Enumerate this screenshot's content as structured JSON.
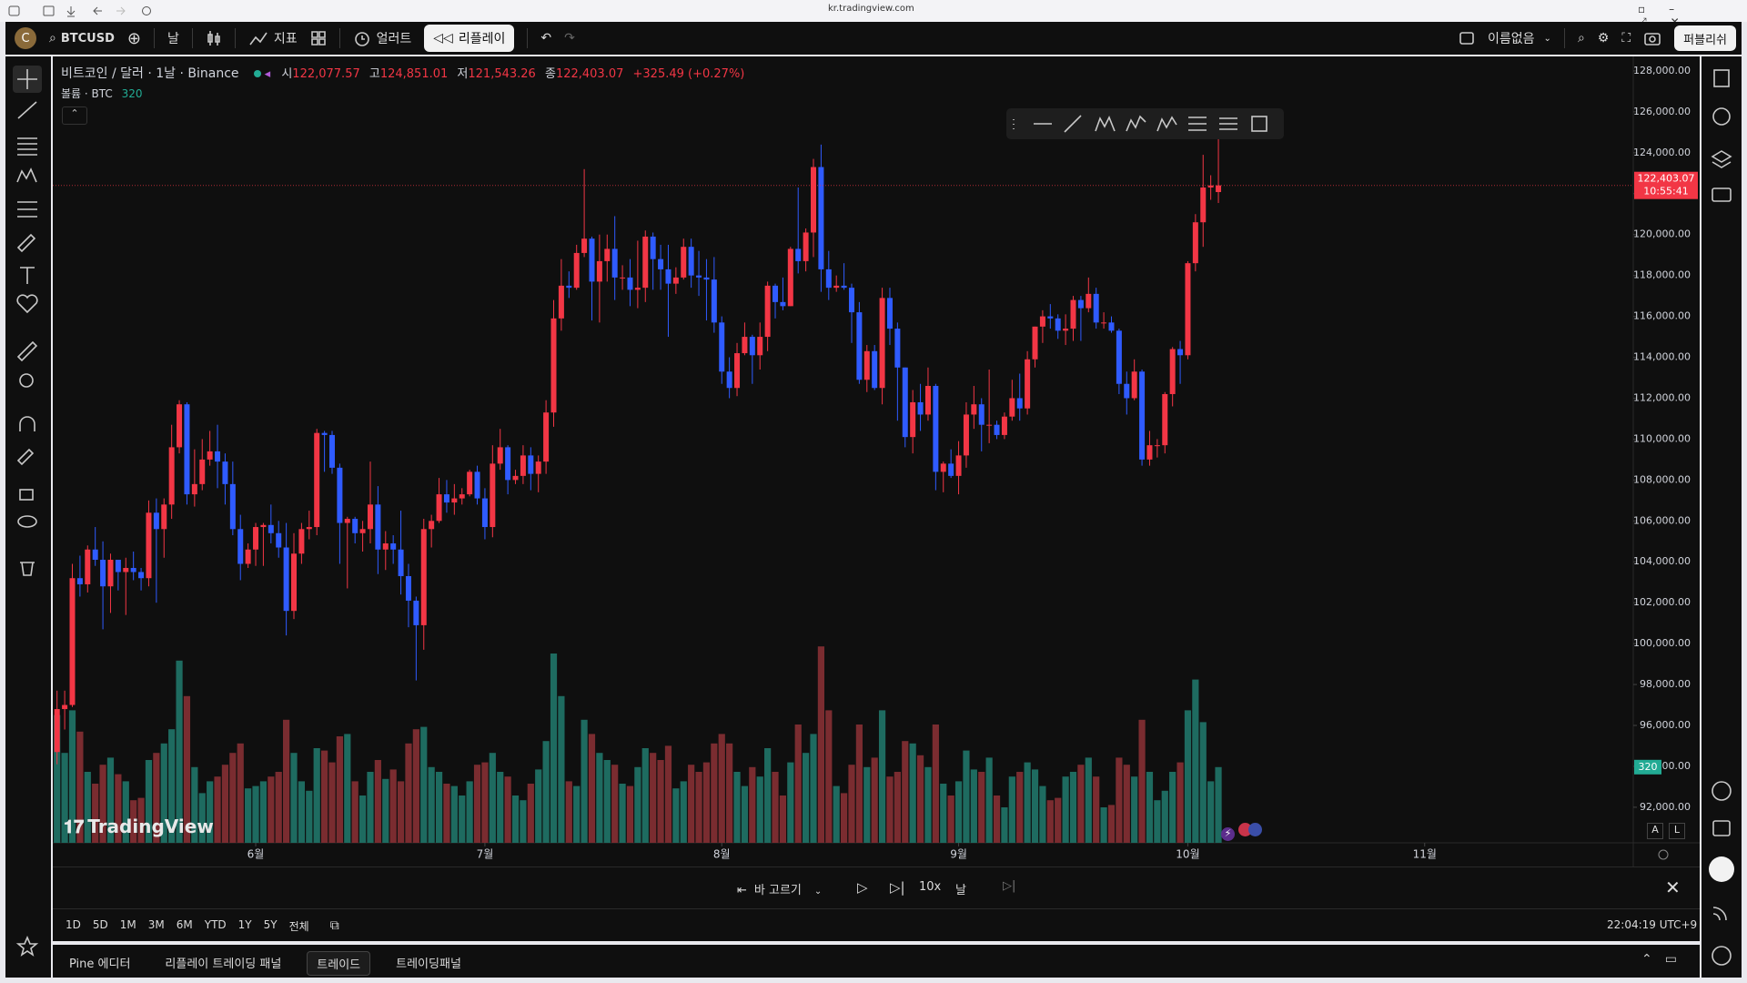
{
  "browser": {
    "url": "kr.tradingview.com"
  },
  "toolbar": {
    "avatar": "C",
    "symbol": "BTCUSD",
    "interval": "날",
    "indicators": "지표",
    "alerts": "얼러트",
    "replay": "리플레이",
    "layout_name": "이름없음",
    "publish": "퍼블리쉬"
  },
  "chart_data": {
    "type": "candlestick",
    "title": "비트코인 / 달러 · 1날 · Binance",
    "legend": {
      "items": [
        {
          "key": "시",
          "label": "122,077.57"
        },
        {
          "key": "고",
          "label": "124,851.01"
        },
        {
          "key": "저",
          "label": "121,543.26"
        },
        {
          "key": "종",
          "label": "122,403.07"
        }
      ],
      "change": "+325.49 (+0.27%)"
    },
    "countdown": "10:55:41",
    "up_color": "#f23645",
    "down_color": "#2f5bff",
    "grid": false,
    "ylim": [
      90260,
      128620
    ],
    "yticks": [
      {
        "value": 128000,
        "label": "128,000.00"
      },
      {
        "value": 126000,
        "label": "126,000.00"
      },
      {
        "value": 124000,
        "label": "124,000.00"
      },
      {
        "value": 122000,
        "label": "122,000.00"
      },
      {
        "value": 120000,
        "label": "120,000.00"
      },
      {
        "value": 118000,
        "label": "118,000.00"
      },
      {
        "value": 116000,
        "label": "116,000.00"
      },
      {
        "value": 114000,
        "label": "114,000.00"
      },
      {
        "value": 112000,
        "label": "112,000.00"
      },
      {
        "value": 110000,
        "label": "110,000.00"
      },
      {
        "value": 108000,
        "label": "108,000.00"
      },
      {
        "value": 106000,
        "label": "106,000.00"
      },
      {
        "value": 104000,
        "label": "104,000.00"
      },
      {
        "value": 102000,
        "label": "102,000.00"
      },
      {
        "value": 100000,
        "label": "100,000.00"
      },
      {
        "value": 98000,
        "label": "98,000.00"
      },
      {
        "value": 96000,
        "label": "96,000.00"
      },
      {
        "value": 94000,
        "label": "94,000.00"
      },
      {
        "value": 92000,
        "label": "92,000.00"
      }
    ],
    "xlim": [
      -0.56,
      206.3
    ],
    "xticks": [
      {
        "value": 26,
        "label": "6월"
      },
      {
        "value": 56,
        "label": "7월"
      },
      {
        "value": 87,
        "label": "8월"
      },
      {
        "value": 118,
        "label": "9월"
      },
      {
        "value": 148,
        "label": "10월"
      },
      {
        "value": 179,
        "label": "11월"
      }
    ],
    "candles": [
      [
        94700,
        97700,
        94100,
        96800
      ],
      [
        96800,
        97700,
        95800,
        97000
      ],
      [
        97000,
        103900,
        96900,
        103200
      ],
      [
        103200,
        104300,
        102300,
        102900
      ],
      [
        102900,
        104800,
        102500,
        104600
      ],
      [
        104600,
        105700,
        103800,
        104100
      ],
      [
        104100,
        105000,
        100700,
        102800
      ],
      [
        102800,
        104400,
        101500,
        104100
      ],
      [
        104100,
        104100,
        102600,
        103500
      ],
      [
        103500,
        104200,
        101400,
        103700
      ],
      [
        103700,
        104500,
        103100,
        103500
      ],
      [
        103500,
        103700,
        102600,
        103200
      ],
      [
        103200,
        107000,
        102800,
        106400
      ],
      [
        106400,
        107100,
        102000,
        105600
      ],
      [
        105600,
        107100,
        104200,
        106800
      ],
      [
        106800,
        110700,
        106100,
        109600
      ],
      [
        109600,
        111900,
        109300,
        111700
      ],
      [
        111700,
        111800,
        106800,
        107300
      ],
      [
        107300,
        109500,
        106700,
        107800
      ],
      [
        107800,
        110000,
        107500,
        109000
      ],
      [
        109000,
        110400,
        108700,
        109400
      ],
      [
        109400,
        110700,
        107600,
        108900
      ],
      [
        108900,
        109300,
        106800,
        107800
      ],
      [
        107800,
        108900,
        105300,
        105600
      ],
      [
        105600,
        106300,
        103100,
        103900
      ],
      [
        103900,
        104900,
        103700,
        104600
      ],
      [
        104600,
        105900,
        103800,
        105700
      ],
      [
        105700,
        105900,
        103800,
        105800
      ],
      [
        105800,
        106800,
        104900,
        105400
      ],
      [
        105400,
        106000,
        104200,
        104700
      ],
      [
        104700,
        105900,
        100400,
        101600
      ],
      [
        101600,
        105400,
        101200,
        104400
      ],
      [
        104400,
        105900,
        103900,
        105600
      ],
      [
        105600,
        106500,
        105100,
        105700
      ],
      [
        105700,
        110500,
        105300,
        110300
      ],
      [
        110300,
        110400,
        108400,
        110200
      ],
      [
        110200,
        110400,
        108300,
        108600
      ],
      [
        108600,
        108800,
        103900,
        105900
      ],
      [
        105900,
        106200,
        102700,
        106100
      ],
      [
        106100,
        106200,
        104900,
        105400
      ],
      [
        105400,
        106000,
        104500,
        105600
      ],
      [
        105600,
        108900,
        104900,
        106800
      ],
      [
        106800,
        107700,
        103400,
        104600
      ],
      [
        104600,
        105500,
        103600,
        104900
      ],
      [
        104900,
        105300,
        103900,
        104600
      ],
      [
        104600,
        106500,
        102400,
        103300
      ],
      [
        103300,
        103900,
        100800,
        102100
      ],
      [
        102100,
        102300,
        98200,
        100900
      ],
      [
        100900,
        106100,
        99700,
        105600
      ],
      [
        105600,
        106300,
        104700,
        106000
      ],
      [
        106000,
        108100,
        105900,
        107300
      ],
      [
        107300,
        108000,
        106400,
        106900
      ],
      [
        106900,
        107800,
        106300,
        107100
      ],
      [
        107100,
        107600,
        106800,
        107300
      ],
      [
        107300,
        108500,
        107200,
        108400
      ],
      [
        108400,
        108700,
        106800,
        107100
      ],
      [
        107100,
        107600,
        105100,
        105700
      ],
      [
        105700,
        109700,
        105200,
        108800
      ],
      [
        108800,
        110500,
        108500,
        109600
      ],
      [
        109600,
        109700,
        107300,
        108000
      ],
      [
        108000,
        108500,
        107800,
        108200
      ],
      [
        108200,
        109700,
        107800,
        109200
      ],
      [
        109200,
        109600,
        107500,
        108300
      ],
      [
        108300,
        109200,
        107400,
        108900
      ],
      [
        108900,
        111900,
        108300,
        111300
      ],
      [
        111300,
        116800,
        110600,
        115900
      ],
      [
        115900,
        118800,
        115300,
        117500
      ],
      [
        117500,
        118200,
        116900,
        117400
      ],
      [
        117400,
        119500,
        117300,
        119100
      ],
      [
        119100,
        123200,
        118900,
        119800
      ],
      [
        119800,
        119900,
        115800,
        117700
      ],
      [
        117700,
        120000,
        115700,
        118700
      ],
      [
        118700,
        120000,
        117700,
        119300
      ],
      [
        119300,
        120900,
        116800,
        117900
      ],
      [
        117900,
        118500,
        117300,
        117900
      ],
      [
        117900,
        118800,
        116500,
        117300
      ],
      [
        117300,
        119700,
        116400,
        117400
      ],
      [
        117400,
        120200,
        116700,
        119900
      ],
      [
        119900,
        120100,
        117300,
        118800
      ],
      [
        118800,
        119500,
        117300,
        118300
      ],
      [
        118300,
        119500,
        115000,
        117600
      ],
      [
        117600,
        118400,
        117100,
        117900
      ],
      [
        117900,
        119800,
        117800,
        119400
      ],
      [
        119400,
        119800,
        117400,
        118000
      ],
      [
        118000,
        119200,
        117000,
        117900
      ],
      [
        117900,
        118800,
        115800,
        117800
      ],
      [
        117800,
        118900,
        115200,
        115700
      ],
      [
        115700,
        116000,
        112700,
        113300
      ],
      [
        113300,
        114000,
        112000,
        112500
      ],
      [
        112500,
        114700,
        112100,
        114200
      ],
      [
        114200,
        115700,
        114100,
        115000
      ],
      [
        115000,
        115100,
        112700,
        114100
      ],
      [
        114100,
        115700,
        113400,
        115000
      ],
      [
        115000,
        117700,
        114300,
        117500
      ],
      [
        117500,
        117600,
        115900,
        116700
      ],
      [
        116700,
        117900,
        116300,
        116500
      ],
      [
        116500,
        119400,
        116500,
        119300
      ],
      [
        119300,
        122300,
        118100,
        118700
      ],
      [
        118700,
        120300,
        118200,
        120100
      ],
      [
        120100,
        123700,
        118900,
        123300
      ],
      [
        123300,
        124400,
        117200,
        118300
      ],
      [
        118300,
        119200,
        116800,
        117400
      ],
      [
        117400,
        118000,
        117200,
        117500
      ],
      [
        117500,
        118600,
        117300,
        117400
      ],
      [
        117400,
        117600,
        114700,
        116200
      ],
      [
        116200,
        116700,
        112700,
        112900
      ],
      [
        112900,
        114600,
        112300,
        114300
      ],
      [
        114300,
        114600,
        112400,
        112500
      ],
      [
        112500,
        117400,
        111700,
        116900
      ],
      [
        116900,
        117400,
        114600,
        115400
      ],
      [
        115400,
        115700,
        110900,
        113500
      ],
      [
        113500,
        113500,
        109600,
        110100
      ],
      [
        110100,
        112400,
        109300,
        111800
      ],
      [
        111800,
        112700,
        110400,
        111200
      ],
      [
        111200,
        113500,
        110900,
        112600
      ],
      [
        112600,
        112700,
        107500,
        108400
      ],
      [
        108400,
        108900,
        107400,
        108800
      ],
      [
        108800,
        109500,
        108100,
        108200
      ],
      [
        108200,
        109900,
        107300,
        109200
      ],
      [
        109200,
        111800,
        108600,
        111200
      ],
      [
        111200,
        112600,
        110500,
        111700
      ],
      [
        111700,
        112000,
        109400,
        110700
      ],
      [
        110700,
        113400,
        109800,
        110700
      ],
      [
        110700,
        110900,
        110000,
        110200
      ],
      [
        110200,
        111300,
        110000,
        111100
      ],
      [
        111100,
        112900,
        110900,
        112000
      ],
      [
        112000,
        113200,
        110900,
        111500
      ],
      [
        111500,
        114300,
        111200,
        113900
      ],
      [
        113900,
        115500,
        113500,
        115500
      ],
      [
        115500,
        116300,
        114700,
        116000
      ],
      [
        116000,
        116600,
        115400,
        115900
      ],
      [
        115900,
        116100,
        114900,
        115300
      ],
      [
        115300,
        116100,
        114600,
        115400
      ],
      [
        115400,
        117000,
        114800,
        116800
      ],
      [
        116800,
        117000,
        114800,
        116400
      ],
      [
        116400,
        117900,
        116200,
        117100
      ],
      [
        117100,
        117400,
        115400,
        115700
      ],
      [
        115700,
        116200,
        115400,
        115700
      ],
      [
        115700,
        116000,
        115200,
        115300
      ],
      [
        115300,
        115400,
        112200,
        112700
      ],
      [
        112700,
        113300,
        111200,
        112000
      ],
      [
        112000,
        113900,
        111900,
        113300
      ],
      [
        113300,
        113400,
        108700,
        109000
      ],
      [
        109000,
        110400,
        108700,
        109700
      ],
      [
        109700,
        110000,
        109100,
        109700
      ],
      [
        109700,
        112300,
        109300,
        112200
      ],
      [
        112200,
        114500,
        111600,
        114400
      ],
      [
        114400,
        114800,
        112700,
        114100
      ],
      [
        114100,
        118700,
        113900,
        118600
      ],
      [
        118600,
        121000,
        118200,
        120600
      ],
      [
        120600,
        123900,
        119400,
        122300
      ],
      [
        122300,
        122900,
        121700,
        122400
      ],
      [
        122077.57,
        124851.01,
        121543.26,
        122403.07
      ]
    ],
    "volume": {
      "name": "볼륨 · BTC",
      "up_color": "#1e6b60",
      "down_color": "#7a2c30",
      "ylim": [
        0,
        1250
      ],
      "values": [
        540,
        380,
        560,
        470,
        300,
        250,
        330,
        360,
        290,
        260,
        180,
        190,
        350,
        380,
        420,
        480,
        770,
        620,
        320,
        210,
        260,
        280,
        330,
        380,
        420,
        230,
        240,
        260,
        280,
        300,
        520,
        380,
        260,
        220,
        400,
        390,
        340,
        450,
        460,
        260,
        200,
        300,
        350,
        270,
        310,
        260,
        420,
        480,
        490,
        320,
        300,
        250,
        240,
        200,
        260,
        330,
        340,
        380,
        300,
        280,
        200,
        180,
        250,
        310,
        430,
        800,
        620,
        260,
        240,
        520,
        460,
        380,
        350,
        330,
        250,
        240,
        320,
        400,
        380,
        350,
        410,
        230,
        260,
        330,
        300,
        340,
        420,
        460,
        420,
        300,
        240,
        320,
        280,
        400,
        300,
        200,
        340,
        500,
        380,
        460,
        830,
        560,
        240,
        210,
        330,
        500,
        320,
        360,
        560,
        280,
        300,
        430,
        420,
        370,
        320,
        500,
        250,
        200,
        260,
        390,
        310,
        300,
        360,
        200,
        150,
        280,
        300,
        340,
        310,
        240,
        180,
        190,
        280,
        300,
        330,
        360,
        280,
        150,
        160,
        360,
        330,
        280,
        520,
        300,
        180,
        220,
        300,
        340,
        560,
        690,
        510,
        260,
        320
      ]
    }
  },
  "watermark": "TradingView",
  "scale_buttons": [
    "A",
    "L"
  ],
  "replay_bar": {
    "select_bar": "바 고르기",
    "speed": "10x",
    "interval": "날"
  },
  "range_bar": {
    "ranges": [
      "1D",
      "5D",
      "1M",
      "3M",
      "6M",
      "YTD",
      "1Y",
      "5Y",
      "전체"
    ],
    "clock": "22:04:19 UTC+9"
  },
  "bottom_tabs": [
    "Pine 에디터",
    "리플레이 트레이딩 패널",
    "트레이드",
    "트레이딩패널"
  ]
}
